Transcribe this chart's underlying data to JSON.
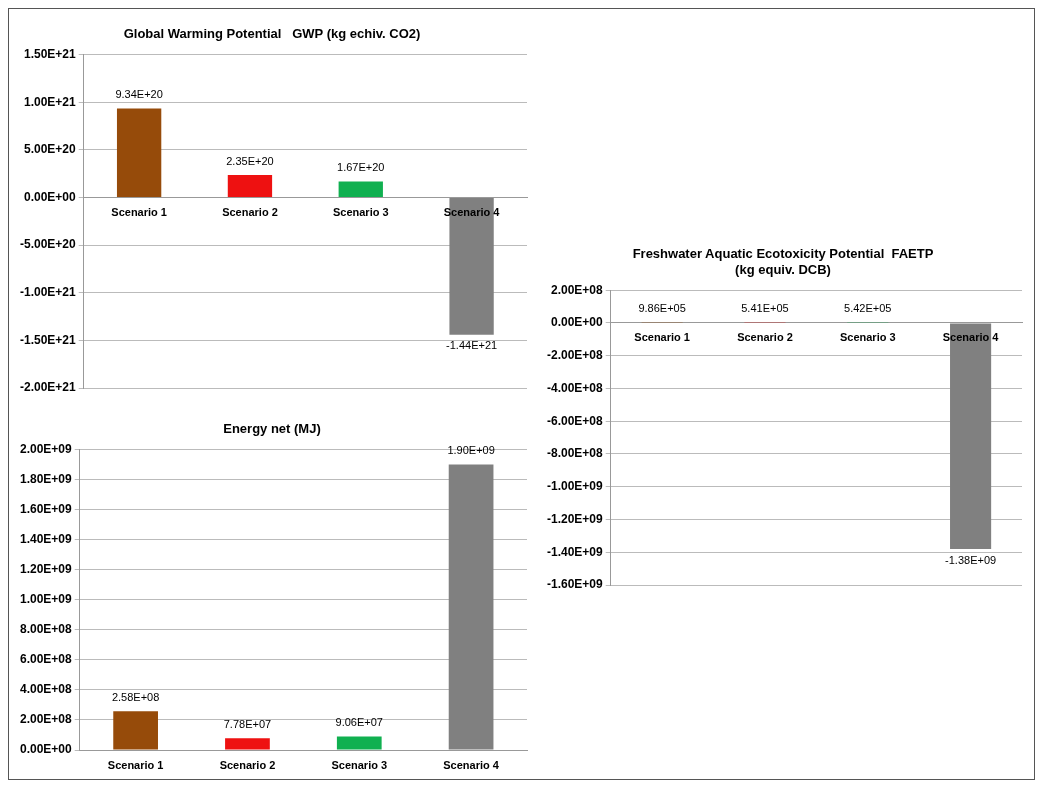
{
  "chart_data": [
    {
      "type": "bar",
      "title": "Global Warming Potential   GWP (kg echiv. CO2)",
      "categories": [
        "Scenario 1",
        "Scenario 2",
        "Scenario 3",
        "Scenario 4"
      ],
      "values": [
        9.34e+20,
        2.35e+20,
        1.67e+20,
        -1.44e+21
      ],
      "colors": [
        "#964b0a",
        "#ee1111",
        "#10b050",
        "#808080"
      ],
      "value_labels": [
        "9.34E+20",
        "2.35E+20",
        "1.67E+20",
        "-1.44E+21"
      ],
      "ylim": [
        -2e+21,
        1.5e+21
      ],
      "yticks": [
        {
          "value": 1.5e+21,
          "label": "1.50E+21"
        },
        {
          "value": 1e+21,
          "label": "1.00E+21"
        },
        {
          "value": 5e+20,
          "label": "5.00E+20"
        },
        {
          "value": 0,
          "label": "0.00E+00"
        },
        {
          "value": -5e+20,
          "label": "-5.00E+20"
        },
        {
          "value": -1e+21,
          "label": "-1.00E+21"
        },
        {
          "value": -1.5e+21,
          "label": "-1.50E+21"
        },
        {
          "value": -2e+21,
          "label": "-2.00E+21"
        }
      ],
      "grid": "y"
    },
    {
      "type": "bar",
      "title": "Freshwater Aquatic Ecotoxicity Potential  FAETP\n(kg equiv. DCB)",
      "categories": [
        "Scenario 1",
        "Scenario 2",
        "Scenario 3",
        "Scenario 4"
      ],
      "values": [
        986000.0,
        541000.0,
        542000.0,
        -1380000000.0
      ],
      "colors": [
        "#964b0a",
        "#ee1111",
        "#10b050",
        "#808080"
      ],
      "value_labels": [
        "9.86E+05",
        "5.41E+05",
        "5.42E+05",
        "-1.38E+09"
      ],
      "ylim": [
        -1600000000.0,
        200000000.0
      ],
      "yticks": [
        {
          "value": 200000000.0,
          "label": "2.00E+08"
        },
        {
          "value": 0,
          "label": "0.00E+00"
        },
        {
          "value": -200000000.0,
          "label": "-2.00E+08"
        },
        {
          "value": -400000000.0,
          "label": "-4.00E+08"
        },
        {
          "value": -600000000.0,
          "label": "-6.00E+08"
        },
        {
          "value": -800000000.0,
          "label": "-8.00E+08"
        },
        {
          "value": -1000000000.0,
          "label": "-1.00E+09"
        },
        {
          "value": -1200000000.0,
          "label": "-1.20E+09"
        },
        {
          "value": -1400000000.0,
          "label": "-1.40E+09"
        },
        {
          "value": -1600000000.0,
          "label": "-1.60E+09"
        }
      ],
      "grid": "y"
    },
    {
      "type": "bar",
      "title": "Energy net (MJ)",
      "categories": [
        "Scenario 1",
        "Scenario 2",
        "Scenario 3",
        "Scenario 4"
      ],
      "values": [
        258000000.0,
        77800000.0,
        90600000.0,
        1900000000.0
      ],
      "colors": [
        "#964b0a",
        "#ee1111",
        "#10b050",
        "#808080"
      ],
      "value_labels": [
        "2.58E+08",
        "7.78E+07",
        "9.06E+07",
        "1.90E+09"
      ],
      "ylim": [
        0,
        2000000000.0
      ],
      "yticks": [
        {
          "value": 0,
          "label": "0.00E+00"
        },
        {
          "value": 200000000.0,
          "label": "2.00E+08"
        },
        {
          "value": 400000000.0,
          "label": "4.00E+08"
        },
        {
          "value": 600000000.0,
          "label": "6.00E+08"
        },
        {
          "value": 800000000.0,
          "label": "8.00E+08"
        },
        {
          "value": 1000000000.0,
          "label": "1.00E+09"
        },
        {
          "value": 1200000000.0,
          "label": "1.20E+09"
        },
        {
          "value": 1400000000.0,
          "label": "1.40E+09"
        },
        {
          "value": 1600000000.0,
          "label": "1.60E+09"
        },
        {
          "value": 1800000000.0,
          "label": "1.80E+09"
        },
        {
          "value": 2000000000.0,
          "label": "2.00E+09"
        }
      ],
      "grid": "y"
    }
  ]
}
